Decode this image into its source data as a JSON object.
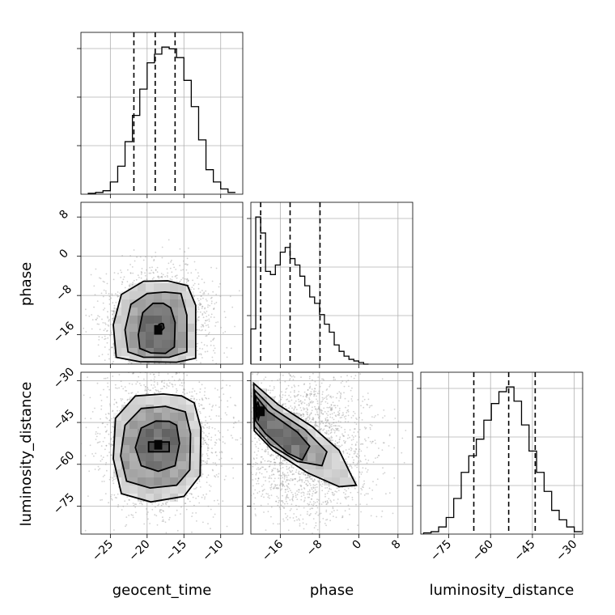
{
  "chart_data": {
    "type": "corner",
    "parameters": [
      "geocent_time",
      "phase",
      "luminosity_distance"
    ],
    "labels": {
      "geocent_time": "geocent_time",
      "phase": "phase",
      "luminosity_distance": "luminosity_distance"
    },
    "ranges": {
      "geocent_time": [
        -29,
        -7
      ],
      "phase": [
        -22,
        11
      ],
      "luminosity_distance": [
        -85,
        -27
      ]
    },
    "ticks": {
      "geocent_time": [
        -25,
        -20,
        -15,
        -10
      ],
      "phase": [
        -16,
        -8,
        0,
        8
      ],
      "luminosity_distance": [
        -75,
        -60,
        -45,
        -30
      ]
    },
    "grid": true,
    "histograms": {
      "geocent_time": {
        "bin_start": -28,
        "bin_width": 1,
        "counts": [
          1,
          2,
          4,
          14,
          32,
          60,
          90,
          120,
          150,
          160,
          168,
          166,
          156,
          130,
          100,
          62,
          28,
          14,
          6,
          2
        ],
        "quantiles": [
          -21.8,
          -18.9,
          -16.2
        ]
      },
      "phase": {
        "bin_start": -22,
        "bin_width": 1,
        "counts": [
          22,
          92,
          82,
          58,
          56,
          62,
          70,
          73,
          66,
          62,
          55,
          49,
          42,
          38,
          31,
          25,
          20,
          12,
          8,
          5,
          3,
          2,
          1,
          0
        ],
        "quantiles": [
          -20,
          -14,
          -7.9
        ]
      },
      "luminosity_distance": {
        "bin_start": -84,
        "bin_width": 2.7,
        "counts": [
          1,
          2,
          6,
          14,
          30,
          52,
          66,
          80,
          96,
          110,
          120,
          124,
          112,
          92,
          70,
          52,
          36,
          20,
          12,
          6,
          2
        ],
        "quantiles": [
          -66,
          -53.5,
          -44
        ]
      }
    },
    "scatter_2d": [
      {
        "x": "geocent_time",
        "y": "phase",
        "contours": [
          [
            [
              -17.8,
              -13.8
            ],
            [
              -17.7,
              -14.6
            ],
            [
              -18.0,
              -15.1
            ],
            [
              -18.4,
              -15.0
            ],
            [
              -18.5,
              -14.5
            ],
            [
              -18.4,
              -13.9
            ],
            [
              -18.0,
              -13.7
            ]
          ],
          [
            [
              -16.8,
              -10.5
            ],
            [
              -16.2,
              -13.5
            ],
            [
              -16.3,
              -18.5
            ],
            [
              -17.5,
              -19.8
            ],
            [
              -19.5,
              -19.7
            ],
            [
              -21.0,
              -18.8
            ],
            [
              -21.2,
              -16.0
            ],
            [
              -20.6,
              -11.5
            ],
            [
              -19.2,
              -9.6
            ],
            [
              -17.8,
              -9.6
            ]
          ],
          [
            [
              -15.4,
              -7.6
            ],
            [
              -14.6,
              -12.0
            ],
            [
              -14.6,
              -19.5
            ],
            [
              -17.0,
              -20.6
            ],
            [
              -20.5,
              -20.6
            ],
            [
              -22.6,
              -19.5
            ],
            [
              -23.0,
              -15.0
            ],
            [
              -22.2,
              -9.8
            ],
            [
              -20.0,
              -7.6
            ],
            [
              -17.6,
              -7.3
            ]
          ],
          [
            [
              -14.5,
              -6.0
            ],
            [
              -13.4,
              -10.0
            ],
            [
              -13.4,
              -20.8
            ],
            [
              -16.0,
              -21.6
            ],
            [
              -21.0,
              -21.5
            ],
            [
              -24.2,
              -20.6
            ],
            [
              -24.6,
              -14.0
            ],
            [
              -23.5,
              -7.8
            ],
            [
              -20.5,
              -5.1
            ],
            [
              -17.2,
              -5.0
            ]
          ]
        ],
        "density_peak": [
          -18.5,
          -15
        ]
      },
      {
        "x": "geocent_time",
        "y": "luminosity_distance",
        "contours": [
          [
            [
              -17.0,
              -52.0
            ],
            [
              -17.0,
              -55.5
            ],
            [
              -19.8,
              -55.5
            ],
            [
              -19.8,
              -52.0
            ]
          ],
          [
            [
              -16.0,
              -46.0
            ],
            [
              -15.6,
              -52.5
            ],
            [
              -16.2,
              -60.5
            ],
            [
              -18.5,
              -62.5
            ],
            [
              -20.8,
              -60.5
            ],
            [
              -21.6,
              -54.0
            ],
            [
              -20.8,
              -47.0
            ],
            [
              -18.8,
              -44.5
            ],
            [
              -17.0,
              -44.6
            ]
          ],
          [
            [
              -14.8,
              -41.2
            ],
            [
              -14.1,
              -49.0
            ],
            [
              -14.2,
              -62.0
            ],
            [
              -16.0,
              -67.5
            ],
            [
              -19.6,
              -68.5
            ],
            [
              -22.8,
              -66.0
            ],
            [
              -23.6,
              -57.0
            ],
            [
              -23.0,
              -46.0
            ],
            [
              -20.8,
              -40.0
            ],
            [
              -17.5,
              -39.2
            ]
          ],
          [
            [
              -13.6,
              -38.0
            ],
            [
              -12.7,
              -47.0
            ],
            [
              -12.8,
              -64.0
            ],
            [
              -15.0,
              -71.5
            ],
            [
              -19.5,
              -73.5
            ],
            [
              -23.5,
              -70.5
            ],
            [
              -24.6,
              -58.0
            ],
            [
              -24.3,
              -43.5
            ],
            [
              -21.6,
              -35.5
            ],
            [
              -17.8,
              -34.8
            ],
            [
              -15.3,
              -35.5
            ]
          ]
        ],
        "density_peak": [
          -18.5,
          -53
        ]
      },
      {
        "x": "phase",
        "y": "luminosity_distance",
        "contours": [
          [
            [
              -20.6,
              -37.5
            ],
            [
              -20.0,
              -41.0
            ],
            [
              -20.5,
              -44.0
            ],
            [
              -21.0,
              -41.0
            ]
          ],
          [
            [
              -21.0,
              -35.5
            ],
            [
              -18.5,
              -41.0
            ],
            [
              -12.5,
              -48.5
            ],
            [
              -10.0,
              -53.5
            ],
            [
              -11.5,
              -58.5
            ],
            [
              -14.5,
              -56.0
            ],
            [
              -19.0,
              -49.0
            ],
            [
              -21.0,
              -44.5
            ]
          ],
          [
            [
              -21.2,
              -33.5
            ],
            [
              -17.5,
              -40.0
            ],
            [
              -11.0,
              -47.5
            ],
            [
              -6.5,
              -55.5
            ],
            [
              -7.5,
              -60.5
            ],
            [
              -12.5,
              -59.0
            ],
            [
              -18.0,
              -53.0
            ],
            [
              -21.3,
              -46.5
            ]
          ],
          [
            [
              -21.4,
              -31.0
            ],
            [
              -16.5,
              -38.5
            ],
            [
              -9.5,
              -46.5
            ],
            [
              -4.0,
              -55.0
            ],
            [
              -1.5,
              -64.0
            ],
            [
              -0.5,
              -67.5
            ],
            [
              -4.0,
              -68.0
            ],
            [
              -10.5,
              -63.0
            ],
            [
              -17.5,
              -55.0
            ],
            [
              -21.3,
              -48.0
            ]
          ]
        ],
        "density_peak": [
          -20,
          -41
        ]
      }
    ]
  }
}
